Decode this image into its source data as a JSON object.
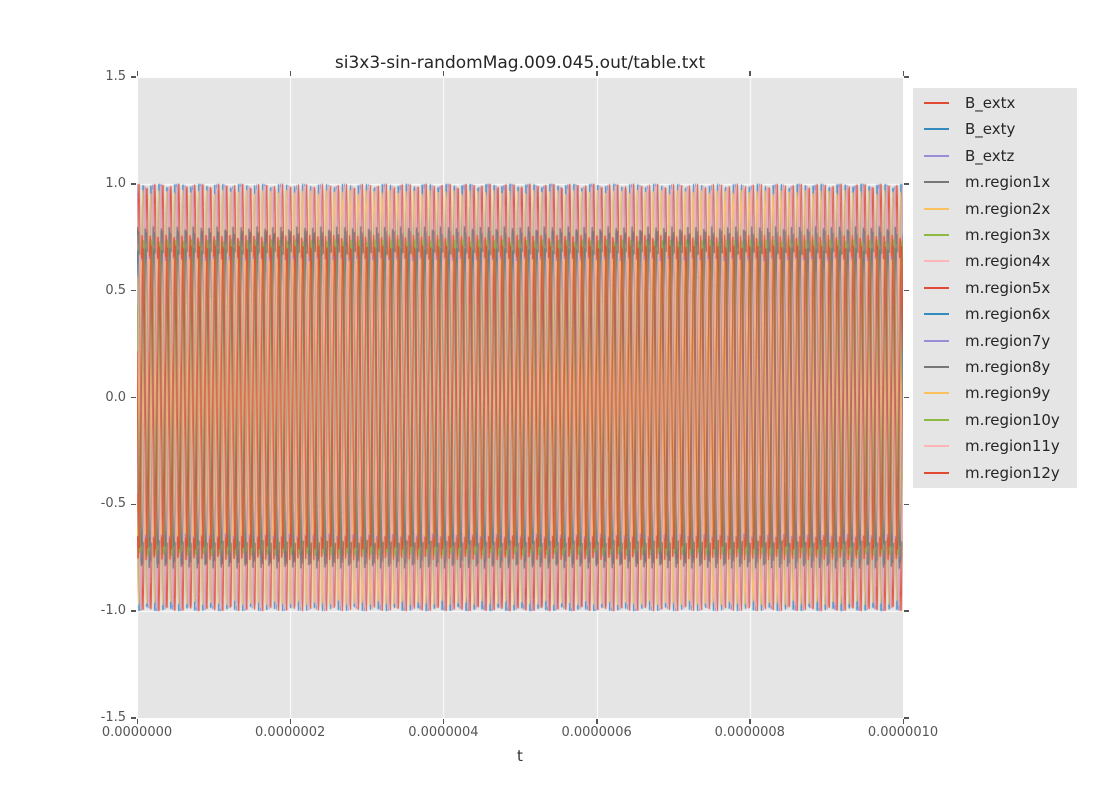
{
  "chart_data": {
    "type": "line",
    "title": "si3x3-sin-randomMag.009.045.out/table.txt",
    "xlabel": "t",
    "ylabel": "",
    "xlim": [
      0,
      1e-06
    ],
    "ylim": [
      -1.5,
      1.5
    ],
    "xtick_labels": [
      "0.0000000",
      "0.0000002",
      "0.0000004",
      "0.0000006",
      "0.0000008",
      "0.0000010"
    ],
    "xtick_values": [
      0,
      2e-07,
      4e-07,
      6e-07,
      8e-07,
      1e-06
    ],
    "ytick_labels": [
      "1.5",
      "1.0",
      "0.5",
      "0.0",
      "-0.5",
      "-1.0",
      "-1.5"
    ],
    "ytick_values": [
      1.5,
      1.0,
      0.5,
      0.0,
      -0.5,
      -1.0,
      -1.5
    ],
    "grid": true,
    "grid_color": "#ffffff",
    "plot_bg_color": "#e5e5e5",
    "figure_bg_color": "#ffffff",
    "legend_position": "outside-right",
    "legend_bg_color": "#e5e5e5",
    "wave_model": {
      "kind": "sine",
      "cycles_over_xrange": 96,
      "frequency_hz": 96000000,
      "samples": 1500
    },
    "series": [
      {
        "name": "B_extx",
        "color": "#E24A33",
        "amplitude": 1.0,
        "phase": 0.0
      },
      {
        "name": "B_exty",
        "color": "#348ABD",
        "amplitude": 1.0,
        "phase": 0.5
      },
      {
        "name": "B_extz",
        "color": "#988ED5",
        "amplitude": 1.0,
        "phase": 0.25
      },
      {
        "name": "m.region1x",
        "color": "#777777",
        "amplitude": 0.78,
        "phase": 0.05
      },
      {
        "name": "m.region2x",
        "color": "#FBC15E",
        "amplitude": 0.97,
        "phase": 0.55
      },
      {
        "name": "m.region3x",
        "color": "#8EBA42",
        "amplitude": 0.72,
        "phase": 0.1
      },
      {
        "name": "m.region4x",
        "color": "#FFB5B8",
        "amplitude": 0.99,
        "phase": 0.3
      },
      {
        "name": "m.region5x",
        "color": "#E24A33",
        "amplitude": 0.76,
        "phase": 0.6
      },
      {
        "name": "m.region6x",
        "color": "#348ABD",
        "amplitude": 0.7,
        "phase": 0.15
      },
      {
        "name": "m.region7y",
        "color": "#988ED5",
        "amplitude": 0.66,
        "phase": 0.65
      },
      {
        "name": "m.region8y",
        "color": "#777777",
        "amplitude": 0.8,
        "phase": 0.2
      },
      {
        "name": "m.region9y",
        "color": "#FBC15E",
        "amplitude": 0.65,
        "phase": 0.7
      },
      {
        "name": "m.region10y",
        "color": "#8EBA42",
        "amplitude": 0.74,
        "phase": 0.4
      },
      {
        "name": "m.region11y",
        "color": "#FFB5B8",
        "amplitude": 0.68,
        "phase": 0.9
      },
      {
        "name": "m.region12y",
        "color": "#E24A33",
        "amplitude": 0.71,
        "phase": 0.45
      }
    ]
  }
}
